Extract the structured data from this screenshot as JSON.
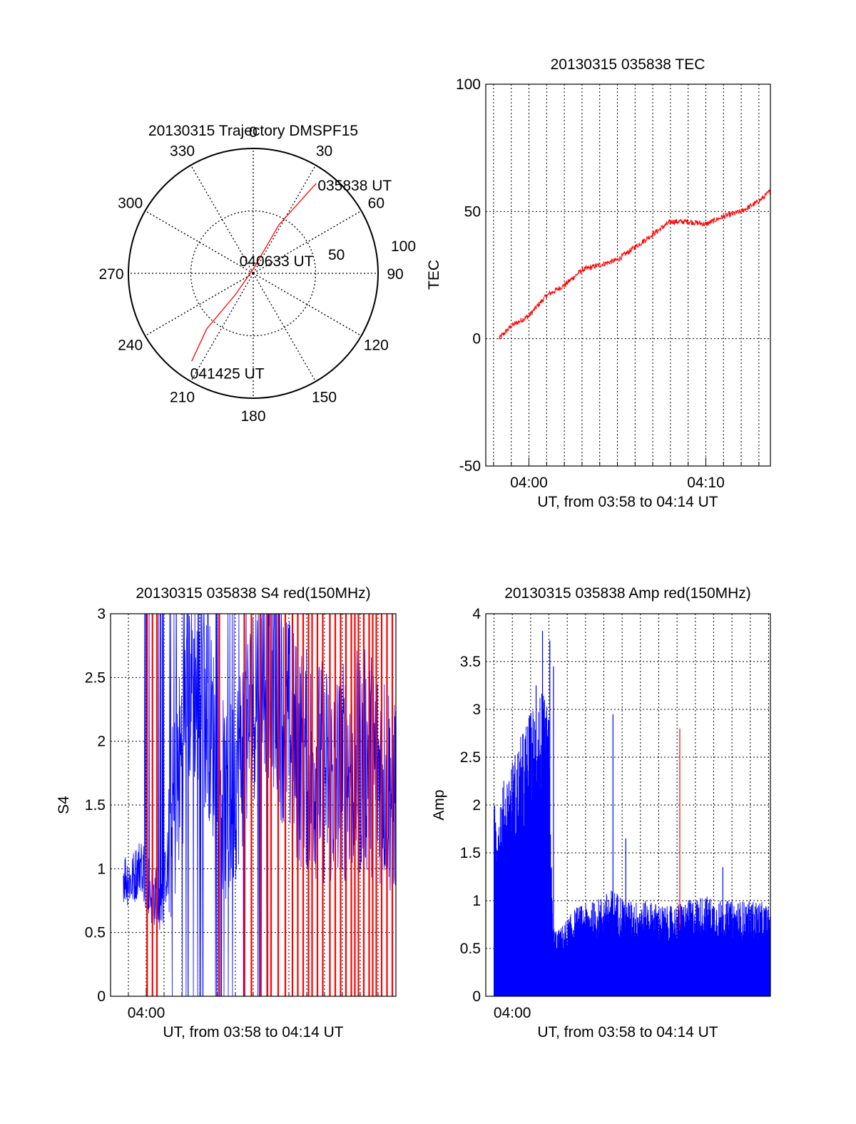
{
  "colors": {
    "red": "#ff0000",
    "blue": "#0000ff",
    "axis": "#000000"
  },
  "chart_data": [
    {
      "id": "trajectory",
      "type": "polar",
      "title": "20130315 Trajectory DMSPF15",
      "azimuth_labels": [
        "0",
        "30",
        "60",
        "90",
        "120",
        "150",
        "180",
        "210",
        "240",
        "270",
        "300",
        "330"
      ],
      "radial_ticks": [
        50,
        100
      ],
      "radial_max": 100,
      "trajectory": {
        "color": "#ff0000",
        "points": [
          {
            "az": 35,
            "r": 88
          },
          {
            "az": 28,
            "r": 44
          },
          {
            "az": 5,
            "r": 4
          },
          {
            "az": 220,
            "r": 22
          },
          {
            "az": 220,
            "r": 58
          },
          {
            "az": 215,
            "r": 86
          }
        ]
      },
      "annotations": [
        {
          "text": "035838 UT",
          "az": 35,
          "r": 88
        },
        {
          "text": "040633 UT",
          "az": 5,
          "r": 4
        },
        {
          "text": "041425 UT",
          "az": 215,
          "r": 86
        }
      ]
    },
    {
      "id": "tec",
      "type": "line",
      "title": "20130315 035838 TEC",
      "ylabel": "TEC",
      "xlabel": "UT, from 03:58 to 04:14 UT",
      "xlim": [
        3.56,
        19.65
      ],
      "ylim": [
        -50,
        100
      ],
      "yticks": [
        -50,
        0,
        50,
        100
      ],
      "xticks": [
        {
          "value": 6,
          "label": "04:00"
        },
        {
          "value": 16,
          "label": "04:10"
        }
      ],
      "x_grid_every": 1,
      "series": [
        {
          "name": "TEC",
          "color": "#ff0000",
          "x": [
            4.3,
            5.0,
            6.0,
            7.0,
            8.0,
            9.0,
            10.0,
            11.0,
            12.0,
            13.0,
            14.0,
            15.0,
            16.0,
            17.0,
            18.0,
            19.0,
            19.65
          ],
          "y": [
            0,
            5,
            9,
            17,
            21,
            27,
            29,
            31,
            36,
            41,
            46,
            46,
            45,
            48,
            50,
            54,
            58
          ]
        }
      ]
    },
    {
      "id": "s4",
      "type": "line",
      "title": "20130315 035838 S4 red(150MHz)",
      "ylabel": "S4",
      "xlabel": "UT, from 03:58 to 04:14 UT",
      "xlim": [
        3.0,
        19.0
      ],
      "ylim": [
        0,
        3
      ],
      "yticks": [
        0,
        0.5,
        1,
        1.5,
        2,
        2.5,
        3
      ],
      "xticks": [
        {
          "value": 5.0,
          "label": "04:00"
        }
      ],
      "x_grid_every": 1,
      "series": [
        {
          "name": "S4 blue",
          "color": "#0000ff",
          "x": [
            3.7,
            4.2,
            4.7,
            5.3,
            5.9,
            6.7,
            7.5,
            8.5,
            9.5,
            10.5,
            11.5,
            12.5,
            13.5,
            14.5,
            15.5,
            16.5,
            17.5,
            18.5,
            19.0
          ],
          "y": [
            0.95,
            0.9,
            1.05,
            0.8,
            0.75,
            1.6,
            2.5,
            2.2,
            1.4,
            2.0,
            2.6,
            2.3,
            1.9,
            1.8,
            1.7,
            1.8,
            1.85,
            1.7,
            1.6
          ]
        },
        {
          "name": "S4 red",
          "color": "#ff0000",
          "spikes_x": [
            5.05,
            5.35,
            5.6,
            9.1,
            10.5,
            10.9,
            11.4,
            11.8,
            12.0,
            12.4,
            12.8,
            13.2,
            13.5,
            13.8,
            14.1,
            14.3,
            14.6,
            14.9,
            15.3,
            15.6,
            15.9,
            16.2,
            16.5,
            16.7,
            16.9,
            17.2,
            17.5,
            17.7,
            17.9,
            18.2,
            18.5,
            18.8
          ],
          "spike_value": 3
        }
      ]
    },
    {
      "id": "amp",
      "type": "line",
      "title": "20130315 035838 Amp red(150MHz)",
      "ylabel": "Amp",
      "xlabel": "UT, from 03:58 to 04:14 UT",
      "xlim": [
        4.55,
        20.1
      ],
      "ylim": [
        0,
        4
      ],
      "yticks": [
        0,
        0.5,
        1,
        1.5,
        2,
        2.5,
        3,
        3.5,
        4
      ],
      "yticklabels": [
        "0",
        "0.5",
        "1",
        "1.5",
        "2",
        "2.5",
        "3",
        "3.5",
        "4"
      ],
      "xticks": [
        {
          "value": 6.0,
          "label": "04:00"
        }
      ],
      "x_grid_every": 1,
      "series": [
        {
          "name": "Amp envelope",
          "color": "#0000ff",
          "x": [
            5.0,
            5.5,
            6.0,
            6.5,
            7.0,
            7.5,
            8.0,
            8.2,
            8.5,
            9.5,
            10.5,
            11.5,
            12.5,
            13.5,
            14.5,
            15.5,
            16.5,
            17.5,
            18.5,
            19.5,
            20.1
          ],
          "y": [
            1.6,
            1.8,
            2.0,
            2.2,
            2.4,
            2.6,
            2.4,
            0.6,
            0.55,
            0.75,
            0.8,
            0.9,
            0.8,
            0.8,
            0.75,
            0.8,
            0.85,
            0.8,
            0.8,
            0.8,
            0.75
          ],
          "peaks": [
            {
              "x": 7.65,
              "y": 3.82
            },
            {
              "x": 8.05,
              "y": 3.72
            },
            {
              "x": 8.25,
              "y": 3.45
            },
            {
              "x": 7.3,
              "y": 3.25
            },
            {
              "x": 11.5,
              "y": 2.95
            },
            {
              "x": 12.2,
              "y": 1.65
            },
            {
              "x": 17.5,
              "y": 1.35
            }
          ]
        },
        {
          "name": "Amp red",
          "color": "#ff0000",
          "spikes": [
            {
              "x": 15.15,
              "y": 2.8
            }
          ]
        }
      ]
    }
  ]
}
